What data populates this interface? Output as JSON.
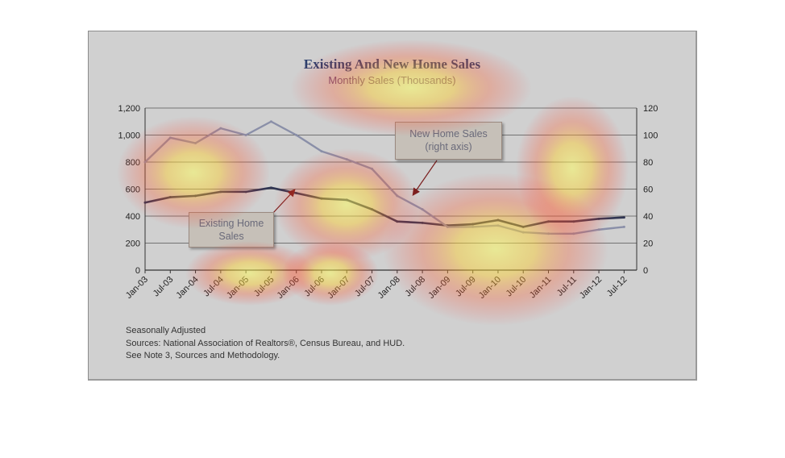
{
  "chart_data": {
    "type": "line",
    "title": "Existing And New Home Sales",
    "subtitle": "Monthly Sales (Thousands)",
    "x_tick_labels": [
      "Jan-03",
      "Jul-03",
      "Jan-04",
      "Jul-04",
      "Jan-05",
      "Jul-05",
      "Jan-06",
      "Jul-06",
      "Jan-07",
      "Jul-07",
      "Jan-08",
      "Jul-08",
      "Jan-09",
      "Jul-09",
      "Jan-10",
      "Jul-10",
      "Jan-11",
      "Jul-11",
      "Jan-12",
      "Jul-12"
    ],
    "y_left": {
      "ylim": [
        0,
        1200
      ],
      "ticks": [
        "0",
        "200",
        "400",
        "600",
        "800",
        "1,000",
        "1,200"
      ]
    },
    "y_right": {
      "ylim": [
        0,
        120
      ],
      "ticks": [
        "0",
        "20",
        "40",
        "60",
        "80",
        "100",
        "120"
      ]
    },
    "grid": "horizontal",
    "series": [
      {
        "name": "Existing Home Sales",
        "axis": "left",
        "color": "#2f3552",
        "x": [
          "Jan-03",
          "Jul-03",
          "Jan-04",
          "Jul-04",
          "Jan-05",
          "Jul-05",
          "Jan-06",
          "Jul-06",
          "Jan-07",
          "Jul-07",
          "Jan-08",
          "Jul-08",
          "Jan-09",
          "Jul-09",
          "Jan-10",
          "Jul-10",
          "Jan-11",
          "Jul-11",
          "Jan-12",
          "Jul-12"
        ],
        "values": [
          500,
          540,
          550,
          580,
          580,
          610,
          570,
          530,
          520,
          450,
          360,
          350,
          330,
          340,
          370,
          320,
          360,
          360,
          380,
          390
        ]
      },
      {
        "name": "New Home Sales",
        "axis": "right",
        "color": "#8a8fa8",
        "x": [
          "Jan-03",
          "Jul-03",
          "Jan-04",
          "Jul-04",
          "Jan-05",
          "Jul-05",
          "Jan-06",
          "Jul-06",
          "Jan-07",
          "Jul-07",
          "Jan-08",
          "Jul-08",
          "Jan-09",
          "Jul-09",
          "Jan-10",
          "Jul-10",
          "Jan-11",
          "Jul-11",
          "Jan-12",
          "Jul-12"
        ],
        "values": [
          80,
          98,
          94,
          105,
          100,
          110,
          100,
          88,
          82,
          75,
          55,
          45,
          32,
          32,
          33,
          28,
          27,
          27,
          30,
          32
        ]
      }
    ],
    "annotations": {
      "new_home": "New Home Sales (right axis)",
      "existing_home": "Existing Home Sales"
    }
  },
  "callouts": {
    "new_home_line1": "New Home Sales",
    "new_home_line2": "(right axis)",
    "existing_line1": "Existing Home",
    "existing_line2": "Sales"
  },
  "notes": {
    "line1": "Seasonally Adjusted",
    "line2": "Sources:  National Association of Realtors®, Census Bureau, and HUD.",
    "line3": "See Note 3, Sources and Methodology."
  }
}
